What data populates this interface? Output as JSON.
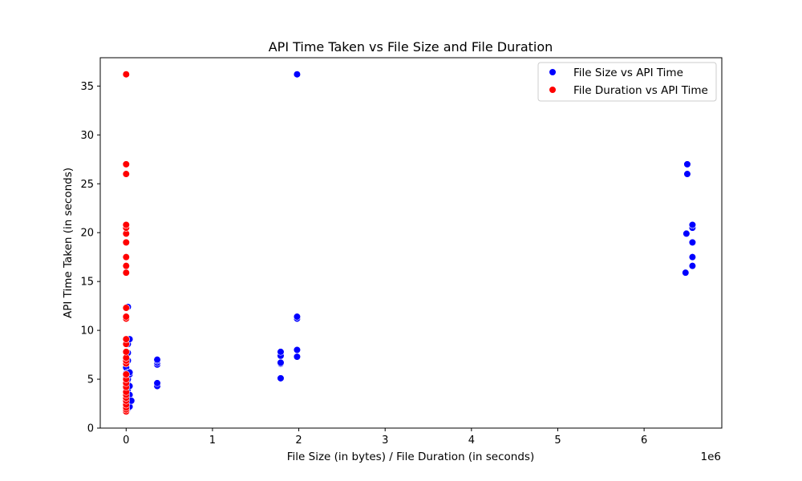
{
  "chart_data": {
    "type": "scatter",
    "title": "API Time Taken vs File Size and File Duration",
    "xlabel": "File Size (in bytes) / File Duration (in seconds)",
    "ylabel": "API Time Taken (in seconds)",
    "x_offset_label": "1e6",
    "x_scale": 1000000,
    "xlim": [
      -300000,
      6900000
    ],
    "ylim": [
      0,
      37.9
    ],
    "xticks": [
      0,
      1000000,
      2000000,
      3000000,
      4000000,
      5000000,
      6000000
    ],
    "xtick_labels": [
      "0",
      "1",
      "2",
      "3",
      "4",
      "5",
      "6"
    ],
    "yticks": [
      0,
      5,
      10,
      15,
      20,
      25,
      30,
      35
    ],
    "ytick_labels": [
      "0",
      "5",
      "10",
      "15",
      "20",
      "25",
      "30",
      "35"
    ],
    "grid": false,
    "legend_position": "top-right",
    "series": [
      {
        "name": "File Size vs API Time",
        "color": "#0000ff",
        "points": [
          [
            0,
            1.7
          ],
          [
            0,
            1.9
          ],
          [
            0,
            2.1
          ],
          [
            0,
            2.3
          ],
          [
            0,
            2.6
          ],
          [
            0,
            2.9
          ],
          [
            0,
            3.3
          ],
          [
            0,
            3.7
          ],
          [
            0,
            4.1
          ],
          [
            0,
            4.6
          ],
          [
            0,
            5.2
          ],
          [
            0,
            5.6
          ],
          [
            0,
            6.2
          ],
          [
            0,
            6.6
          ],
          [
            0,
            7.0
          ],
          [
            0,
            11.2
          ],
          [
            0,
            11.4
          ],
          [
            0,
            12.3
          ],
          [
            20000,
            2.0
          ],
          [
            20000,
            2.4
          ],
          [
            20000,
            3.0
          ],
          [
            20000,
            3.5
          ],
          [
            20000,
            4.0
          ],
          [
            20000,
            4.5
          ],
          [
            20000,
            5.0
          ],
          [
            20000,
            5.4
          ],
          [
            20000,
            5.7
          ],
          [
            20000,
            6.9
          ],
          [
            20000,
            7.7
          ],
          [
            20000,
            8.6
          ],
          [
            20000,
            9.1
          ],
          [
            20000,
            12.4
          ],
          [
            40000,
            2.2
          ],
          [
            40000,
            2.8
          ],
          [
            40000,
            3.4
          ],
          [
            40000,
            4.3
          ],
          [
            40000,
            5.5
          ],
          [
            40000,
            5.7
          ],
          [
            40000,
            9.1
          ],
          [
            60000,
            2.8
          ],
          [
            360000,
            4.3
          ],
          [
            360000,
            4.6
          ],
          [
            360000,
            6.5
          ],
          [
            360000,
            6.7
          ],
          [
            360000,
            6.9
          ],
          [
            360000,
            7.0
          ],
          [
            1790000,
            5.1
          ],
          [
            1790000,
            6.6
          ],
          [
            1790000,
            6.7
          ],
          [
            1790000,
            7.4
          ],
          [
            1790000,
            7.8
          ],
          [
            1980000,
            7.3
          ],
          [
            1980000,
            8.0
          ],
          [
            1980000,
            11.2
          ],
          [
            1980000,
            11.4
          ],
          [
            1980000,
            36.2
          ],
          [
            6480000,
            15.9
          ],
          [
            6490000,
            19.9
          ],
          [
            6500000,
            26.0
          ],
          [
            6500000,
            27.0
          ],
          [
            6560000,
            16.6
          ],
          [
            6560000,
            17.5
          ],
          [
            6560000,
            19.0
          ],
          [
            6560000,
            20.5
          ],
          [
            6560000,
            20.8
          ]
        ]
      },
      {
        "name": "File Duration vs API Time",
        "color": "#ff0000",
        "points": [
          [
            0,
            1.7
          ],
          [
            0,
            1.9
          ],
          [
            0,
            2.1
          ],
          [
            0,
            2.4
          ],
          [
            0,
            2.8
          ],
          [
            0,
            3.1
          ],
          [
            0,
            3.4
          ],
          [
            0,
            3.7
          ],
          [
            0,
            4.2
          ],
          [
            0,
            4.6
          ],
          [
            0,
            5.0
          ],
          [
            0,
            5.5
          ],
          [
            0,
            6.6
          ],
          [
            0,
            6.9
          ],
          [
            0,
            7.2
          ],
          [
            0,
            7.8
          ],
          [
            0,
            8.6
          ],
          [
            0,
            9.1
          ],
          [
            0,
            11.2
          ],
          [
            0,
            11.4
          ],
          [
            0,
            12.3
          ],
          [
            0,
            15.9
          ],
          [
            0,
            16.6
          ],
          [
            0,
            17.5
          ],
          [
            0,
            19.0
          ],
          [
            0,
            19.9
          ],
          [
            0,
            20.5
          ],
          [
            0,
            20.8
          ],
          [
            0,
            26.0
          ],
          [
            0,
            27.0
          ],
          [
            0,
            36.2
          ]
        ]
      }
    ]
  }
}
